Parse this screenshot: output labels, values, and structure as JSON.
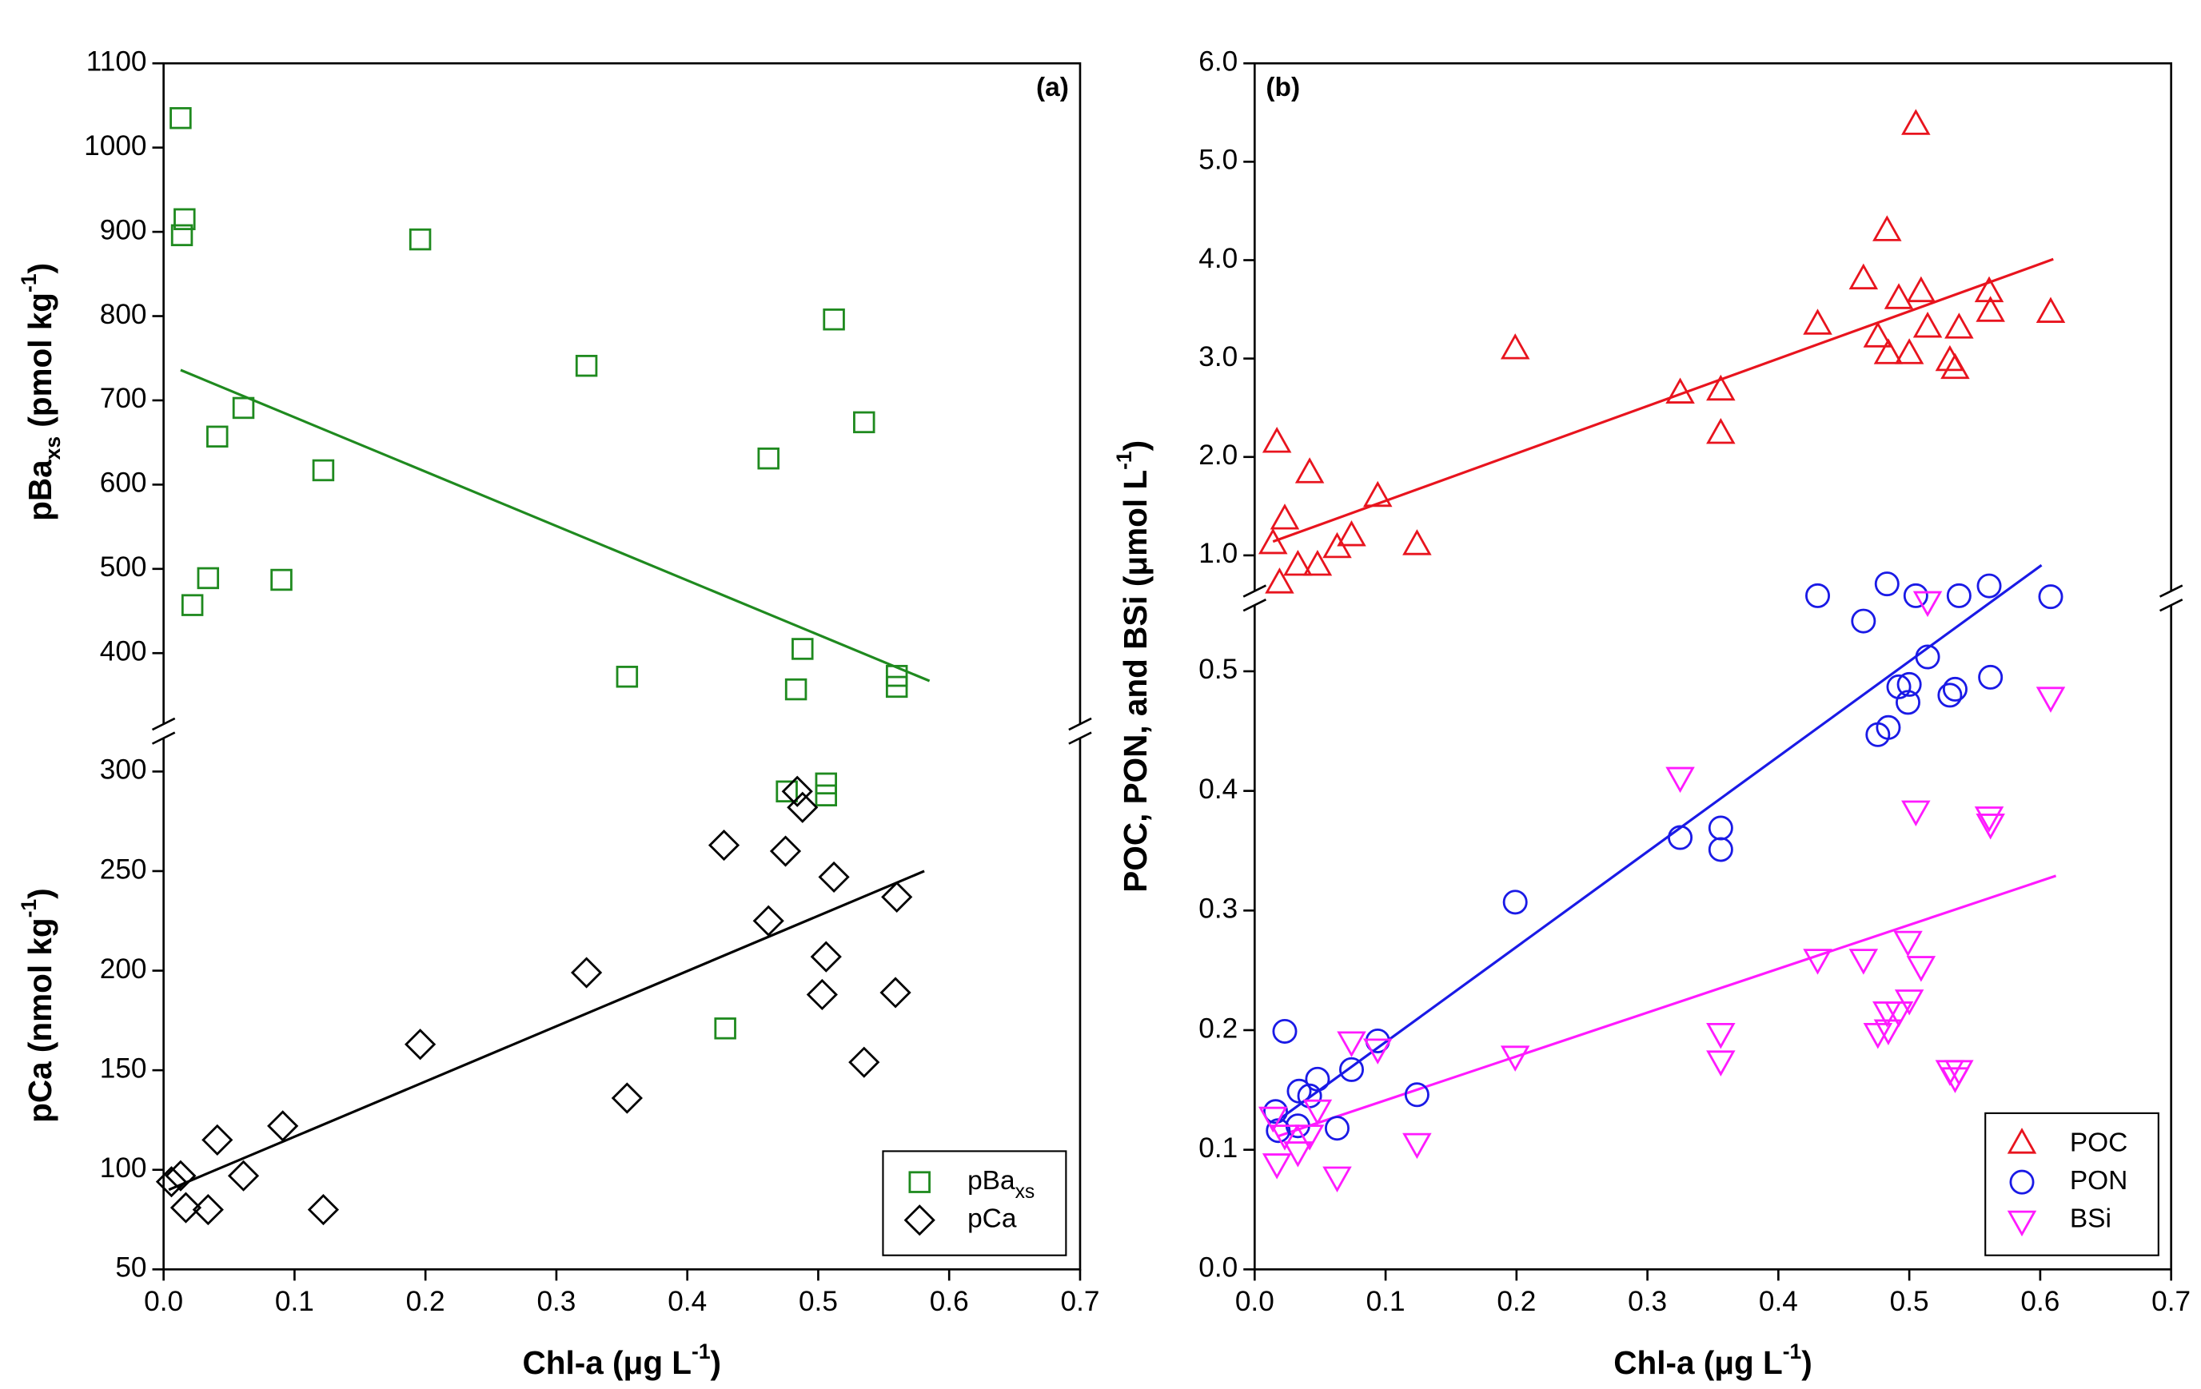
{
  "chart_data": [
    {
      "type": "scatter",
      "panel_label": "(a)",
      "xlabel": [
        {
          "text": "Chl-a (μg L"
        },
        {
          "text": "-1",
          "shift": "super"
        },
        {
          "text": ")"
        }
      ],
      "xlim": [
        0,
        0.7
      ],
      "xticks": [
        {
          "value": 0,
          "label": "0.0"
        },
        0.1,
        0.2,
        0.3,
        0.4,
        0.5,
        0.6,
        0.7
      ],
      "y_segments": [
        {
          "ylim": [
            50,
            315
          ],
          "yticks": [
            50,
            100,
            150,
            200,
            250,
            300
          ],
          "ylabel": [
            {
              "text": "pCa (nmol kg"
            },
            {
              "text": "-1",
              "shift": "super"
            },
            {
              "text": ")"
            }
          ]
        },
        {
          "ylim": [
            320,
            1100
          ],
          "yticks": [
            400,
            500,
            600,
            700,
            800,
            900,
            1000,
            1100
          ],
          "ylabel": [
            {
              "text": "pBa"
            },
            {
              "text": "xs",
              "shift": "sub"
            },
            {
              "text": " (pmol kg"
            },
            {
              "text": "-1",
              "shift": "super"
            },
            {
              "text": ")"
            }
          ]
        }
      ],
      "legend": "lower right",
      "series": [
        {
          "name": "pBa",
          "name_sub": "xs",
          "color": "#1f8a1f",
          "marker": "square",
          "x": [
            0.013,
            0.016,
            0.014,
            0.196,
            0.323,
            0.512,
            0.535,
            0.061,
            0.041,
            0.122,
            0.462,
            0.034,
            0.09,
            0.022,
            0.354,
            0.488,
            0.483,
            0.56,
            0.56,
            0.476,
            0.506,
            0.506,
            0.429
          ],
          "values": [
            1035,
            915,
            896,
            891,
            741,
            796,
            674,
            691,
            657,
            617,
            631,
            489,
            487,
            457,
            372,
            405,
            357,
            373,
            360,
            290,
            294,
            288,
            171
          ]
        },
        {
          "name": "pCa",
          "color": "#000000",
          "marker": "diamond",
          "x": [
            0.013,
            0.006,
            0.017,
            0.034,
            0.041,
            0.061,
            0.091,
            0.122,
            0.196,
            0.323,
            0.354,
            0.428,
            0.462,
            0.475,
            0.484,
            0.488,
            0.512,
            0.506,
            0.503,
            0.56,
            0.559,
            0.535
          ],
          "values": [
            97,
            94,
            81,
            80,
            115,
            97,
            122,
            80,
            163,
            199,
            136,
            263,
            225,
            260,
            290,
            282,
            247,
            207,
            188,
            237,
            189,
            154
          ]
        }
      ],
      "trendlines": [
        {
          "color": "#1f8a1f",
          "x": [
            0.013,
            0.585
          ],
          "values": [
            736,
            367
          ]
        },
        {
          "color": "#000000",
          "x": [
            0.004,
            0.581
          ],
          "values": [
            90,
            250
          ]
        }
      ]
    },
    {
      "type": "scatter",
      "panel_label": "(b)",
      "xlabel": [
        {
          "text": "Chl-a (μg L"
        },
        {
          "text": "-1",
          "shift": "super"
        },
        {
          "text": ")"
        }
      ],
      "ylabel": [
        {
          "text": "POC, PON, and BSi (μmol L"
        },
        {
          "text": "-1",
          "shift": "super"
        },
        {
          "text": ")"
        }
      ],
      "xlim": [
        0,
        0.7
      ],
      "xticks": [
        {
          "value": 0,
          "label": "0.0"
        },
        0.1,
        0.2,
        0.3,
        0.4,
        0.5,
        0.6,
        0.7
      ],
      "y_segments": [
        {
          "ylim": [
            0,
            0.56
          ],
          "yticks": [
            {
              "value": 0,
              "label": "0.0"
            },
            0.1,
            0.2,
            0.3,
            0.4,
            0.5
          ]
        },
        {
          "ylim": [
            0.58,
            6.0
          ],
          "yticks": [
            {
              "value": 1,
              "label": "1.0"
            },
            {
              "value": 2,
              "label": "2.0"
            },
            {
              "value": 3,
              "label": "3.0"
            },
            {
              "value": 4,
              "label": "4.0"
            },
            {
              "value": 5,
              "label": "5.0"
            },
            {
              "value": 6,
              "label": "6.0"
            }
          ]
        }
      ],
      "legend": "lower right",
      "series": [
        {
          "name": "POC",
          "color": "#e8141e",
          "marker": "triangle-up",
          "x": [
            0.017,
            0.014,
            0.023,
            0.019,
            0.033,
            0.048,
            0.042,
            0.063,
            0.074,
            0.094,
            0.124,
            0.199,
            0.325,
            0.356,
            0.356,
            0.43,
            0.465,
            0.476,
            0.483,
            0.484,
            0.492,
            0.5,
            0.505,
            0.509,
            0.514,
            0.531,
            0.535,
            0.538,
            0.561,
            0.562,
            0.608
          ],
          "values": [
            2.14,
            1.11,
            1.36,
            0.71,
            0.89,
            0.89,
            1.83,
            1.07,
            1.19,
            1.59,
            1.1,
            3.09,
            2.64,
            2.67,
            2.23,
            3.34,
            3.8,
            3.21,
            4.29,
            3.04,
            3.6,
            3.04,
            5.37,
            3.67,
            3.31,
            2.97,
            2.89,
            3.3,
            3.67,
            3.47,
            3.46
          ]
        },
        {
          "name": "PON",
          "color": "#1a1ae6",
          "marker": "circle",
          "x": [
            0.016,
            0.018,
            0.023,
            0.034,
            0.033,
            0.042,
            0.048,
            0.063,
            0.074,
            0.094,
            0.124,
            0.199,
            0.325,
            0.356,
            0.356,
            0.43,
            0.465,
            0.476,
            0.484,
            0.483,
            0.492,
            0.5,
            0.499,
            0.505,
            0.514,
            0.531,
            0.535,
            0.538,
            0.561,
            0.562,
            0.608
          ],
          "values": [
            0.132,
            0.116,
            0.199,
            0.149,
            0.12,
            0.145,
            0.159,
            0.118,
            0.167,
            0.191,
            0.146,
            0.307,
            0.361,
            0.369,
            0.351,
            0.59,
            0.542,
            0.447,
            0.453,
            0.71,
            0.487,
            0.489,
            0.474,
            0.59,
            0.512,
            0.48,
            0.485,
            0.59,
            0.69,
            0.495,
            0.58
          ]
        },
        {
          "name": "BSi",
          "color": "#ff1aff",
          "marker": "triangle-down",
          "x": [
            0.017,
            0.014,
            0.023,
            0.033,
            0.042,
            0.048,
            0.063,
            0.074,
            0.094,
            0.124,
            0.199,
            0.325,
            0.356,
            0.356,
            0.43,
            0.465,
            0.476,
            0.483,
            0.484,
            0.492,
            0.5,
            0.499,
            0.505,
            0.509,
            0.514,
            0.531,
            0.535,
            0.538,
            0.561,
            0.562,
            0.608
          ],
          "values": [
            0.089,
            0.128,
            0.113,
            0.099,
            0.113,
            0.134,
            0.078,
            0.191,
            0.185,
            0.106,
            0.179,
            0.412,
            0.198,
            0.175,
            0.26,
            0.26,
            0.198,
            0.216,
            0.201,
            0.216,
            0.226,
            0.275,
            0.384,
            0.254,
            0.559,
            0.167,
            0.161,
            0.167,
            0.379,
            0.373,
            0.479
          ]
        }
      ],
      "trendlines": [
        {
          "color": "#e8141e",
          "x": [
            0.014,
            0.61
          ],
          "values": [
            1.14,
            4.01
          ]
        },
        {
          "color": "#1a1ae6",
          "x": [
            0.017,
            0.601
          ],
          "values": [
            0.124,
            0.9
          ]
        },
        {
          "color": "#ff1aff",
          "x": [
            0.017,
            0.612
          ],
          "values": [
            0.111,
            0.329
          ]
        }
      ]
    }
  ]
}
